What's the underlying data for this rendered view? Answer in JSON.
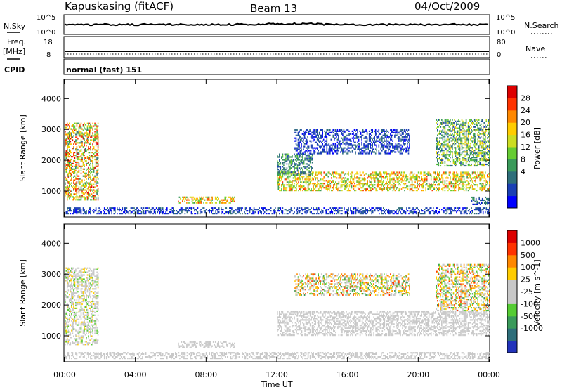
{
  "header": {
    "station": "Kapuskasing (fitACF)",
    "beam": "Beam 13",
    "date": "04/Oct/2009"
  },
  "noise_panel": {
    "left_label": "N.Sky",
    "left_ticks": [
      "10^5",
      "10^0"
    ],
    "right_ticks": [
      "10^5",
      "10^0"
    ],
    "right_label": "N.Search"
  },
  "freq_panel": {
    "left_label_1": "Freq.",
    "left_label_2": "[MHz]",
    "left_ticks": [
      "18",
      "8"
    ],
    "right_ticks": [
      "80",
      "0"
    ],
    "right_label": "Nave"
  },
  "cpid": {
    "label": "CPID",
    "value": "normal (fast) 151"
  },
  "chart_data": [
    {
      "type": "heatmap",
      "name": "Power",
      "xlabel": "Time UT",
      "ylabel": "Slant Range [km]",
      "xlim_hours": [
        0,
        24
      ],
      "ylim": [
        180,
        4600
      ],
      "x_ticks": [
        "00:00",
        "04:00",
        "08:00",
        "12:00",
        "16:00",
        "20:00",
        "00:00"
      ],
      "y_ticks": [
        1000,
        2000,
        3000,
        4000
      ],
      "colorbar": {
        "label": "Power [dB]",
        "ticks": [
          "28",
          "24",
          "20",
          "16",
          "12",
          "8",
          "4"
        ],
        "colors": [
          "#0000ff",
          "#1a3fb4",
          "#2e6e7a",
          "#3a9a5a",
          "#66cc33",
          "#ccdd22",
          "#ffcc00",
          "#ff8800",
          "#ff3300",
          "#dd0000"
        ]
      },
      "regions": [
        {
          "t": [
            0.0,
            1.9
          ],
          "r": [
            700,
            3200
          ],
          "level": [
            2,
            9
          ]
        },
        {
          "t": [
            6.4,
            9.6
          ],
          "r": [
            600,
            800
          ],
          "level": [
            3,
            8
          ]
        },
        {
          "t": [
            12.0,
            24.0
          ],
          "r": [
            1000,
            1600
          ],
          "level": [
            3,
            8
          ]
        },
        {
          "t": [
            12.0,
            14.0
          ],
          "r": [
            1500,
            2200
          ],
          "level": [
            1,
            4
          ]
        },
        {
          "t": [
            13.0,
            19.5
          ],
          "r": [
            2200,
            3000
          ],
          "level": [
            0,
            2
          ]
        },
        {
          "t": [
            21.0,
            24.0
          ],
          "r": [
            1800,
            3300
          ],
          "level": [
            1,
            6
          ]
        },
        {
          "t": [
            23.0,
            24.0
          ],
          "r": [
            550,
            800
          ],
          "level": [
            0,
            3
          ]
        },
        {
          "t": [
            0.0,
            24.0
          ],
          "r": [
            250,
            450
          ],
          "level": [
            0,
            2
          ]
        }
      ]
    },
    {
      "type": "heatmap",
      "name": "Velocity",
      "xlabel": "Time UT",
      "ylabel": "Slant Range [km]",
      "xlim_hours": [
        0,
        24
      ],
      "ylim": [
        180,
        4600
      ],
      "x_ticks": [
        "00:00",
        "04:00",
        "08:00",
        "12:00",
        "16:00",
        "20:00",
        "00:00"
      ],
      "y_ticks": [
        1000,
        2000,
        3000,
        4000
      ],
      "colorbar": {
        "label": "Velocity [m s^-1]",
        "ticks": [
          "1000",
          "500",
          "100",
          "25",
          "-25",
          "-100",
          "-500",
          "-1000"
        ],
        "colors": [
          "#2233bb",
          "#2e6e7a",
          "#3a9a5a",
          "#55cc33",
          "#c8c8c8",
          "#c8c8c8",
          "#ffcc00",
          "#ff8800",
          "#ff3300",
          "#dd0000"
        ]
      },
      "regions": [
        {
          "t": [
            0.0,
            1.9
          ],
          "r": [
            700,
            3200
          ],
          "level": [
            3,
            6
          ]
        },
        {
          "t": [
            6.4,
            9.6
          ],
          "r": [
            600,
            800
          ],
          "level": [
            4,
            5
          ]
        },
        {
          "t": [
            12.0,
            24.0
          ],
          "r": [
            1000,
            1800
          ],
          "level": [
            4,
            5
          ]
        },
        {
          "t": [
            13.0,
            19.5
          ],
          "r": [
            2300,
            3000
          ],
          "level": [
            2,
            8
          ]
        },
        {
          "t": [
            21.0,
            24.0
          ],
          "r": [
            1800,
            3300
          ],
          "level": [
            2,
            8
          ]
        },
        {
          "t": [
            0.0,
            24.0
          ],
          "r": [
            250,
            450
          ],
          "level": [
            4,
            5
          ]
        }
      ]
    }
  ]
}
